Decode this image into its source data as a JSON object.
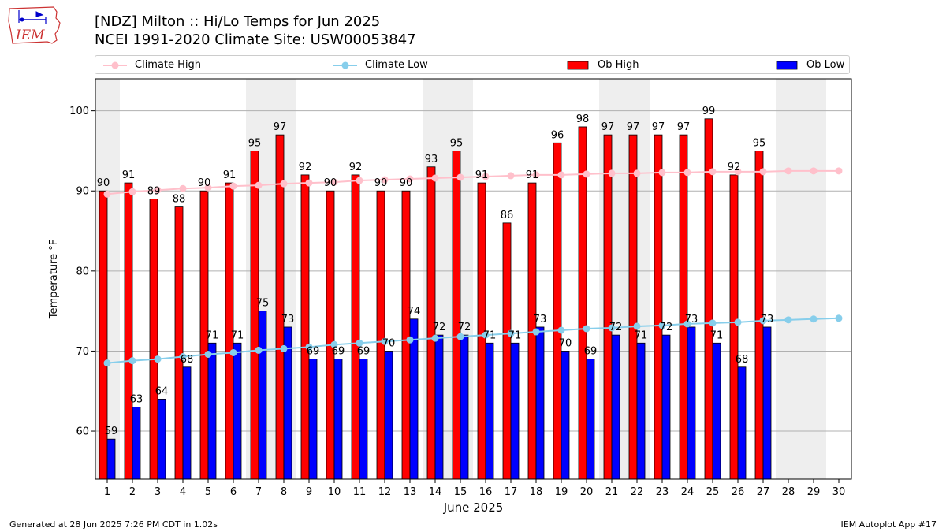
{
  "header": {
    "title_line1": "[NDZ] Milton :: Hi/Lo Temps for Jun 2025",
    "title_line2": "NCEI 1991-2020 Climate Site: USW00053847"
  },
  "logo": {
    "label": "IEM"
  },
  "footer": {
    "generated": "Generated at 28 Jun 2025 7:26 PM CDT in 1.02s",
    "app": "IEM Autoplot App #17"
  },
  "colors": {
    "ob_high": "#ff0000",
    "ob_low": "#0000ff",
    "climate_high": "#ffc0cb",
    "climate_low": "#87ceeb",
    "weekend_band": "#eeeeee",
    "grid": "#b0b0b0"
  },
  "chart_data": {
    "type": "bar",
    "xlabel": "June 2025",
    "ylabel": "Temperature °F",
    "ylim": [
      54,
      104
    ],
    "yticks": [
      60,
      70,
      80,
      90,
      100
    ],
    "grid": "horizontal",
    "legend_position": "top",
    "days": [
      1,
      2,
      3,
      4,
      5,
      6,
      7,
      8,
      9,
      10,
      11,
      12,
      13,
      14,
      15,
      16,
      17,
      18,
      19,
      20,
      21,
      22,
      23,
      24,
      25,
      26,
      27,
      28,
      29,
      30
    ],
    "weekend_days": [
      1,
      7,
      8,
      14,
      15,
      21,
      22,
      28,
      29
    ],
    "series": [
      {
        "name": "Climate High",
        "kind": "line",
        "values": [
          89.6,
          89.9,
          90.1,
          90.3,
          90.4,
          90.6,
          90.7,
          90.9,
          91.0,
          91.1,
          91.3,
          91.4,
          91.5,
          91.6,
          91.7,
          91.8,
          91.9,
          92.0,
          92.0,
          92.1,
          92.2,
          92.2,
          92.3,
          92.3,
          92.4,
          92.4,
          92.4,
          92.5,
          92.5,
          92.5
        ]
      },
      {
        "name": "Climate Low",
        "kind": "line",
        "values": [
          68.5,
          68.8,
          69.0,
          69.3,
          69.6,
          69.8,
          70.1,
          70.3,
          70.5,
          70.8,
          71.0,
          71.2,
          71.4,
          71.6,
          71.8,
          72.0,
          72.2,
          72.4,
          72.6,
          72.8,
          72.9,
          73.1,
          73.2,
          73.4,
          73.5,
          73.6,
          73.8,
          73.9,
          74.0,
          74.1
        ]
      },
      {
        "name": "Ob High",
        "kind": "bar",
        "values": [
          90,
          91,
          89,
          88,
          90,
          91,
          95,
          97,
          92,
          90,
          92,
          90,
          90,
          93,
          95,
          91,
          86,
          91,
          96,
          98,
          97,
          97,
          97,
          97,
          99,
          92,
          95
        ]
      },
      {
        "name": "Ob Low",
        "kind": "bar",
        "values": [
          59,
          63,
          64,
          68,
          71,
          71,
          75,
          73,
          69,
          69,
          69,
          70,
          74,
          72,
          72,
          71,
          71,
          73,
          70,
          69,
          72,
          71,
          72,
          73,
          71,
          68,
          73
        ]
      }
    ]
  }
}
